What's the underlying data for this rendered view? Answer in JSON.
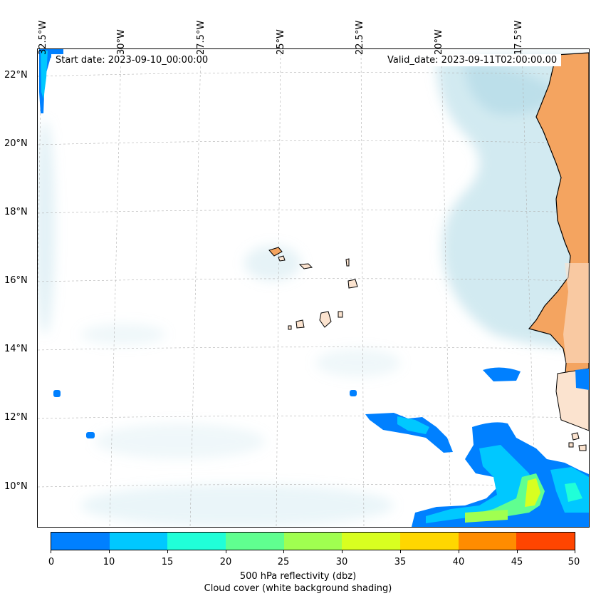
{
  "map": {
    "start_date": "Start date: 2023-09-10_00:00:00",
    "valid_date": "Valid_date: 2023-09-11T02:00:00.00",
    "lon_labels": [
      "32.5°W",
      "30°W",
      "27.5°W",
      "25°W",
      "22.5°W",
      "20°W",
      "17.5°W"
    ],
    "lat_labels": [
      "22°N",
      "20°N",
      "18°N",
      "16°N",
      "14°N",
      "12°N",
      "10°N"
    ],
    "colors": {
      "land": "#f4a460",
      "land_light": "#fbe3cf",
      "cloud": "#add8e6",
      "coastline": "#000000",
      "grid": "#b0b0b0"
    }
  },
  "colorbar": {
    "ticks": [
      "0",
      "10",
      "15",
      "20",
      "25",
      "30",
      "35",
      "40",
      "45",
      "50"
    ],
    "colors": [
      "#0080ff",
      "#00c8ff",
      "#20ffd8",
      "#60ff90",
      "#a0ff50",
      "#d8ff20",
      "#ffd700",
      "#ff8c00",
      "#ff4500"
    ],
    "label_line1": "500 hPa reflectivity (dbz)",
    "label_line2": "Cloud cover (white background shading)"
  }
}
